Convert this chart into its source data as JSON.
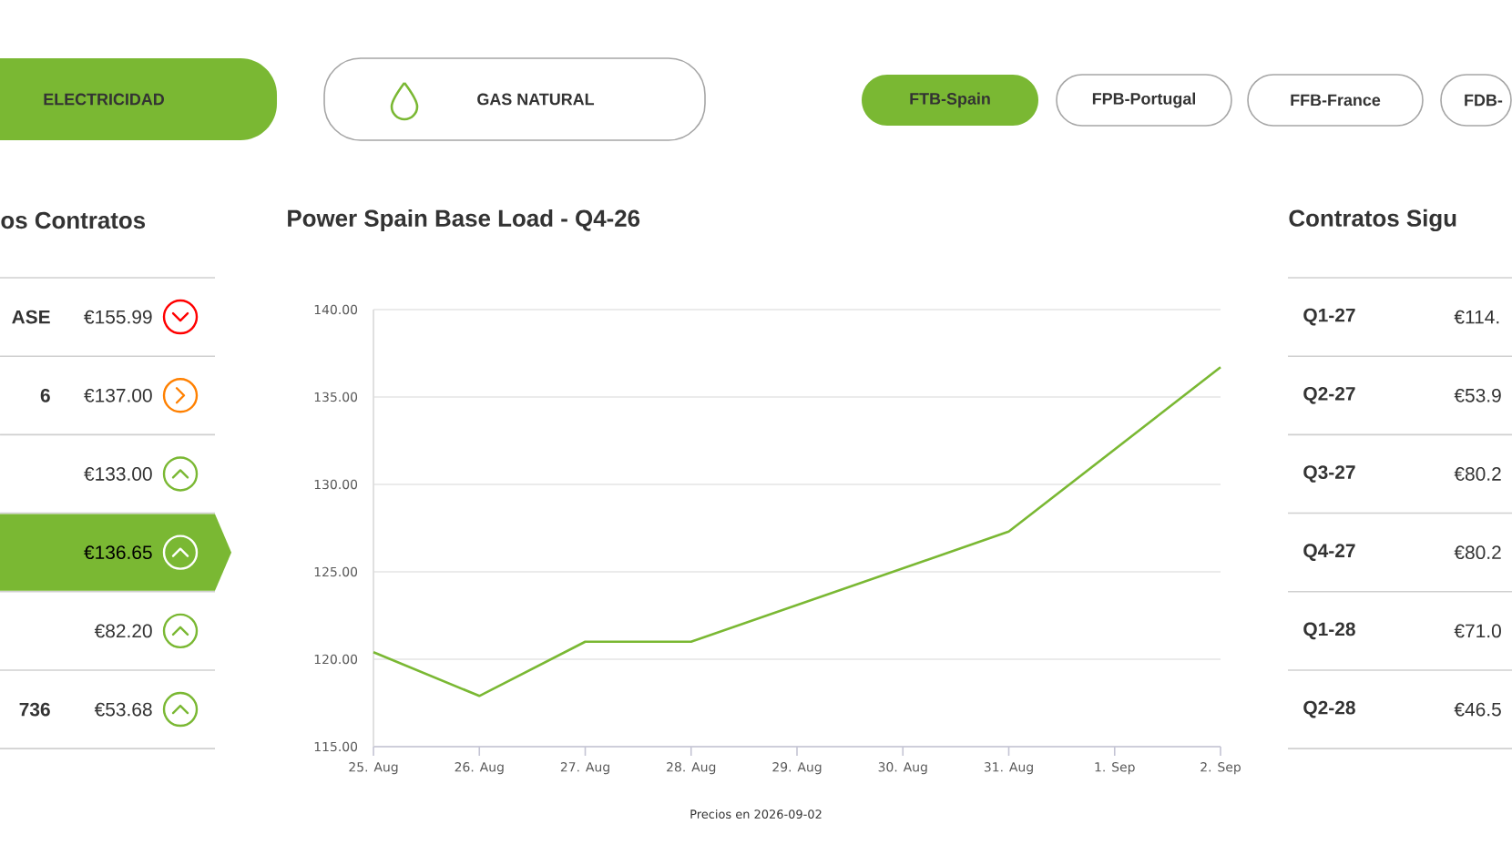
{
  "chart_data": [
    {
      "type": "other",
      "annotations": [
        "ELECTRICIDAD",
        "GAS NATURAL",
        "FTB-Spain",
        "FPB-Portugal",
        "FFB-France",
        "FDB-"
      ]
    },
    {
      "type": "other",
      "title": "os Contratos",
      "categories": [
        "ASE",
        "6",
        null,
        null,
        null,
        "736"
      ],
      "annotations": [
        "€155.99",
        "€137.00",
        "€133.00",
        "€136.65",
        "€82.20",
        "€53.68"
      ]
    },
    {
      "type": "line",
      "title": "Power Spain Base Load - Q4-26",
      "annotations": [
        "Precios en 2026-09-02"
      ],
      "x": [
        "2026-08-25",
        "2026-08-26",
        "2026-08-27",
        "2026-08-28",
        "2026-08-29",
        "2026-08-30",
        "2026-08-31",
        "2026-09-01",
        "2026-09-02"
      ],
      "series": [
        {
          "color": "#7ab833",
          "values": [
            120.4,
            117.9,
            121.0,
            121.0,
            123.1,
            125.2,
            127.3,
            132.0,
            136.7
          ]
        }
      ],
      "xlim": [
        "2026-08-25",
        "2026-09-02"
      ],
      "xticks": [
        {
          "value": "2026-08-25",
          "label": "25. Aug"
        },
        {
          "value": "2026-08-26",
          "label": "26. Aug"
        },
        {
          "value": "2026-08-27",
          "label": "27. Aug"
        },
        {
          "value": "2026-08-28",
          "label": "28. Aug"
        },
        {
          "value": "2026-08-29",
          "label": "29. Aug"
        },
        {
          "value": "2026-08-30",
          "label": "30. Aug"
        },
        {
          "value": "2026-08-31",
          "label": "31. Aug"
        },
        {
          "value": "2026-09-01",
          "label": "1. Sep"
        },
        {
          "value": "2026-09-02",
          "label": "2. Sep"
        }
      ],
      "ylim": [
        115,
        140
      ],
      "yticks": [
        {
          "value": 115,
          "label": "115.00"
        },
        {
          "value": 120,
          "label": "120.00"
        },
        {
          "value": 125,
          "label": "125.00"
        },
        {
          "value": 130,
          "label": "130.00"
        },
        {
          "value": 135,
          "label": "135.00"
        },
        {
          "value": 140,
          "label": "140.00"
        }
      ],
      "grid": "y",
      "marker": "none",
      "line_style": "solid"
    },
    {
      "type": "other",
      "title": "Contratos Sigu",
      "categories": [
        "Q1-27",
        "Q2-27",
        "Q3-27",
        "Q4-27",
        "Q1-28",
        "Q2-28"
      ],
      "annotations": [
        "€114.",
        "€53.9",
        "€80.2",
        "€80.2",
        "€71.0",
        "€46.5"
      ]
    }
  ]
}
